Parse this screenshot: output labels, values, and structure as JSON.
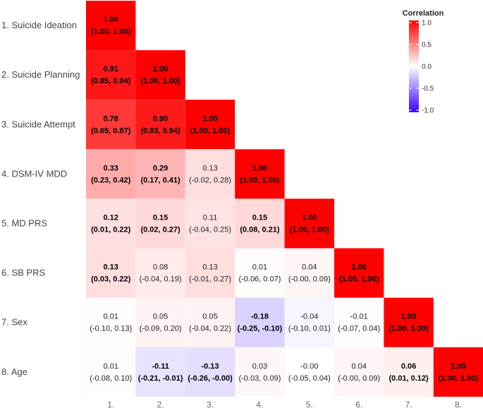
{
  "chart_data": {
    "type": "heatmap",
    "subtype": "lower-triangular correlation matrix",
    "row_labels": [
      "1. Suicide Ideation",
      "2. Suicide Planning",
      "3. Suicide Attempt",
      "4. DSM-IV MDD",
      "5. MD PRS",
      "6. SB PRS",
      "7. Sex",
      "8. Age"
    ],
    "col_labels": [
      "1.",
      "2.",
      "3.",
      "4.",
      "5.",
      "6.",
      "7.",
      "8."
    ],
    "cells": [
      [
        {
          "r": "1.00",
          "ci": "(1.00, 1.00)",
          "b": true
        }
      ],
      [
        {
          "r": "0.91",
          "ci": "(0.85, 0.94)",
          "b": true
        },
        {
          "r": "1.00",
          "ci": "(1.00, 1.00)",
          "b": true
        }
      ],
      [
        {
          "r": "0.78",
          "ci": "(0.65, 0.87)",
          "b": true
        },
        {
          "r": "0.90",
          "ci": "(0.83, 0.94)",
          "b": true
        },
        {
          "r": "1.00",
          "ci": "(1.00, 1.00)",
          "b": true
        }
      ],
      [
        {
          "r": "0.33",
          "ci": "(0.23, 0.42)",
          "b": true
        },
        {
          "r": "0.29",
          "ci": "(0.17, 0.41)",
          "b": true
        },
        {
          "r": "0.13",
          "ci": "(-0.02, 0.28)",
          "b": false
        },
        {
          "r": "1.00",
          "ci": "(1.00, 1.00)",
          "b": true
        }
      ],
      [
        {
          "r": "0.12",
          "ci": "(0.01, 0.22)",
          "b": true
        },
        {
          "r": "0.15",
          "ci": "(0.02, 0.27)",
          "b": true
        },
        {
          "r": "0.11",
          "ci": "(-0.04, 0.25)",
          "b": false
        },
        {
          "r": "0.15",
          "ci": "(0.08, 0.21)",
          "b": true
        },
        {
          "r": "1.00",
          "ci": "(1.00, 1.00)",
          "b": true
        }
      ],
      [
        {
          "r": "0.13",
          "ci": "(0.03, 0.22)",
          "b": true
        },
        {
          "r": "0.08",
          "ci": "(-0.04, 0.19)",
          "b": false
        },
        {
          "r": "0.13",
          "ci": "(-0.01, 0.27)",
          "b": false
        },
        {
          "r": "0.01",
          "ci": "(-0.06, 0.07)",
          "b": false
        },
        {
          "r": "0.04",
          "ci": "(-0.00, 0.09)",
          "b": false
        },
        {
          "r": "1.00",
          "ci": "(1.00, 1.00)",
          "b": true
        }
      ],
      [
        {
          "r": "0.01",
          "ci": "(-0.10, 0.13)",
          "b": false
        },
        {
          "r": "0.05",
          "ci": "(-0.09, 0.20)",
          "b": false
        },
        {
          "r": "0.05",
          "ci": "(-0.04, 0.22)",
          "b": false
        },
        {
          "r": "-0.18",
          "ci": "(-0.25, -0.10)",
          "b": true
        },
        {
          "r": "-0.04",
          "ci": "(-0.10, 0.01)",
          "b": false
        },
        {
          "r": "-0.01",
          "ci": "(-0.07, 0.04)",
          "b": false
        },
        {
          "r": "1.00",
          "ci": "(1.00, 1.00)",
          "b": true
        }
      ],
      [
        {
          "r": "0.01",
          "ci": "(-0.08, 0.10)",
          "b": false
        },
        {
          "r": "-0.11",
          "ci": "(-0.21, -0.01)",
          "b": true
        },
        {
          "r": "-0.13",
          "ci": "(-0.26, -0.00)",
          "b": true
        },
        {
          "r": "0.03",
          "ci": "(-0.03, 0.09)",
          "b": false
        },
        {
          "r": "-0.00",
          "ci": "(-0.05, 0.04)",
          "b": false
        },
        {
          "r": "0.04",
          "ci": "(-0.00, 0.09)",
          "b": false
        },
        {
          "r": "0.06",
          "ci": "(0.01, 0.12)",
          "b": true
        },
        {
          "r": "1.00",
          "ci": "(1.00, 1.00)",
          "b": true
        }
      ]
    ],
    "legend": {
      "title": "Correlation",
      "ticks": [
        "1.0",
        "0.5",
        "0.0",
        "-0.5",
        "-1.0"
      ],
      "range": [
        -1,
        1
      ],
      "colors": {
        "high": "#ff0000",
        "mid": "#ffffff",
        "low": "#3a00ff"
      }
    }
  }
}
